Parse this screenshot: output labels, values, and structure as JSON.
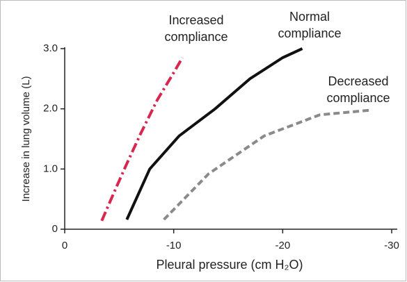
{
  "chart_data": {
    "type": "line",
    "xlabel": "Pleural pressure (cm H₂O)",
    "ylabel": "Increase in lung volume (L)",
    "xlim": [
      0,
      -30
    ],
    "xticks": [
      0,
      -10,
      -20,
      -30
    ],
    "ylim": [
      0,
      3
    ],
    "yticks": [
      0,
      {
        "value": 1,
        "label": "1.0"
      },
      {
        "value": 2,
        "label": "2.0"
      },
      {
        "value": 3,
        "label": "3.0"
      }
    ],
    "series": [
      {
        "label": [
          "Increased",
          "compliance"
        ],
        "color": "#d8274f",
        "dash": "dashdot",
        "x": [
          -3.4,
          -4.5,
          -5.6,
          -7.0,
          -8.5,
          -10.0,
          -10.8
        ],
        "values": [
          0.14,
          0.6,
          1.05,
          1.6,
          2.15,
          2.6,
          2.85
        ]
      },
      {
        "label": [
          "Normal",
          "compliance"
        ],
        "color": "#111111",
        "dash": "solid",
        "x": [
          -5.7,
          -7.8,
          -10.5,
          -13.8,
          -17.0,
          -20.0,
          -21.8
        ],
        "values": [
          0.16,
          1.0,
          1.55,
          2.0,
          2.5,
          2.85,
          3.0
        ]
      },
      {
        "label": [
          "Decreased",
          "compliance"
        ],
        "color": "#8a8a8a",
        "dash": "dashed",
        "x": [
          -9.1,
          -13.2,
          -18.3,
          -23.4,
          -28.2
        ],
        "values": [
          0.16,
          0.92,
          1.55,
          1.9,
          1.98
        ]
      }
    ]
  }
}
